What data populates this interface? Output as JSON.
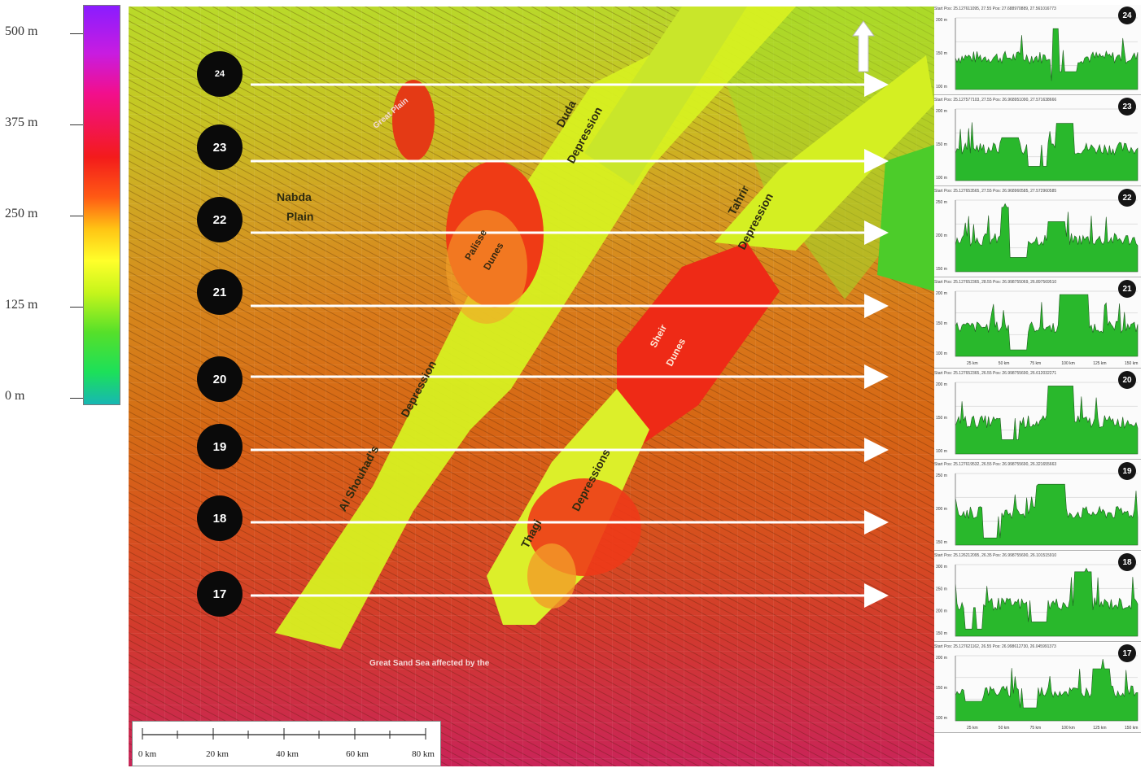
{
  "legend": {
    "labels": [
      {
        "text": "500 m",
        "top": 0.0
      },
      {
        "text": "375 m",
        "top": 0.25
      },
      {
        "text": "250 m",
        "top": 0.5
      },
      {
        "text": "125 m",
        "top": 0.75
      },
      {
        "text": "0 m",
        "top": 1.0
      }
    ],
    "colors": [
      "#8a1cff",
      "#f20f8c",
      "#f31b1b",
      "#ffc414",
      "#ffff2a",
      "#55e02a",
      "#17b7b3"
    ]
  },
  "map": {
    "profile_numbers": [
      "24",
      "23",
      "22",
      "21",
      "20",
      "19",
      "18",
      "17"
    ],
    "labels": {
      "nabda_plain_1": "Nabda",
      "nabda_plain_2": "Plain",
      "duda_1": "Duda",
      "duda_2": "Depression",
      "tahrir_1": "Tahrir",
      "tahrir_2": "Depression",
      "palisse_1": "Palisse",
      "palisse_2": "Dunes",
      "sheir_1": "Sheir",
      "sheir_2": "Dunes",
      "shouhada_1": "Al Shouhad's",
      "shouhada_2": "Depression",
      "thagi_1": "Thagi",
      "thagi_2": "Depressions",
      "great_sand_sea": "Great Sand Sea  affected by the",
      "great_plain": "Great Plain"
    },
    "north_arrow": "north-arrow-icon"
  },
  "scale_bar": {
    "labels": [
      "0 km",
      "20 km",
      "40 km",
      "60 km",
      "80 km"
    ]
  },
  "profiles": [
    {
      "id": "24",
      "header": "Start Pos: 25.127611095, 27.55 Pos: 27.688970889, 27.561016773",
      "y_labels": [
        "200 m",
        "150 m",
        "100 m"
      ],
      "x_labels": []
    },
    {
      "id": "23",
      "header": "Start Pos: 25.127577103, 27.55 Pos: 26.968951090, 27.571638666",
      "y_labels": [
        "200 m",
        "150 m",
        "100 m"
      ],
      "x_labels": []
    },
    {
      "id": "22",
      "header": "Start Pos: 25.127653565, 27.55 Pos: 26.968960585, 27.572960585",
      "y_labels": [
        "250 m",
        "200 m",
        "150 m"
      ],
      "x_labels": []
    },
    {
      "id": "21",
      "header": "Start Pos: 25.127652365, 28.55 Pos: 26.998755069, 26.897569510",
      "y_labels": [
        "200 m",
        "150 m",
        "100 m"
      ],
      "x_labels": [
        "25 km",
        "50 km",
        "75 km",
        "100 km",
        "125 km",
        "150 km"
      ]
    },
    {
      "id": "20",
      "header": "Start Pos: 25.127652365, 26.55 Pos: 26.998755690, 26.612032271",
      "y_labels": [
        "200 m",
        "150 m",
        "100 m"
      ],
      "x_labels": []
    },
    {
      "id": "19",
      "header": "Start Pos: 25.127619532, 26.55 Pos: 26.998755690, 26.321655663",
      "y_labels": [
        "250 m",
        "200 m",
        "150 m"
      ],
      "x_labels": []
    },
    {
      "id": "18",
      "header": "Start Pos: 25.126212095, 26.35 Pos: 26.998755690, 26.101515910",
      "y_labels": [
        "300 m",
        "250 m",
        "200 m",
        "150 m"
      ],
      "x_labels": []
    },
    {
      "id": "17",
      "header": "Start Pos: 25.127621162, 26.55 Pos: 26.998612730, 26.045991373",
      "y_labels": [
        "200 m",
        "150 m",
        "100 m"
      ],
      "x_labels": [
        "25 km",
        "50 km",
        "75 km",
        "100 km",
        "125 km",
        "150 km"
      ]
    }
  ]
}
